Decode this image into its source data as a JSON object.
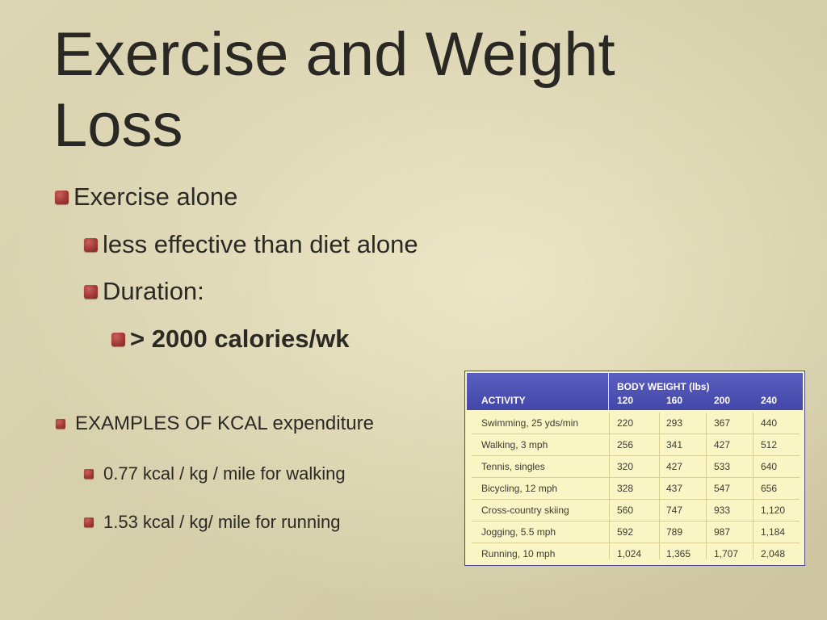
{
  "slide": {
    "title": "Exercise and Weight Loss",
    "bullets": {
      "exercise_alone": "Exercise alone",
      "less_effective": "less effective than diet alone",
      "duration": "Duration:",
      "calories": "> 2000 calories/wk",
      "examples": "EXAMPLES OF KCAL expenditure",
      "walking": "0.77 kcal / kg / mile for walking",
      "running": "1.53 kcal / kg/ mile for running"
    }
  },
  "table": {
    "activity_header": "ACTIVITY",
    "group_header": "BODY WEIGHT (lbs)",
    "weights": [
      "120",
      "160",
      "200",
      "240"
    ],
    "rows": [
      {
        "activity": "Swimming, 25 yds/min",
        "values": [
          "220",
          "293",
          "367",
          "440"
        ]
      },
      {
        "activity": "Walking, 3 mph",
        "values": [
          "256",
          "341",
          "427",
          "512"
        ]
      },
      {
        "activity": "Tennis, singles",
        "values": [
          "320",
          "427",
          "533",
          "640"
        ]
      },
      {
        "activity": "Bicycling, 12 mph",
        "values": [
          "328",
          "437",
          "547",
          "656"
        ]
      },
      {
        "activity": "Cross-country skiing",
        "values": [
          "560",
          "747",
          "933",
          "1,120"
        ]
      },
      {
        "activity": "Jogging, 5.5 mph",
        "values": [
          "592",
          "789",
          "987",
          "1,184"
        ]
      },
      {
        "activity": "Running, 10 mph",
        "values": [
          "1,024",
          "1,365",
          "1,707",
          "2,048"
        ]
      }
    ],
    "colors": {
      "header_bg": "#4a4fb4",
      "body_bg": "#faf5c4",
      "bullet": "#a33a36"
    }
  }
}
